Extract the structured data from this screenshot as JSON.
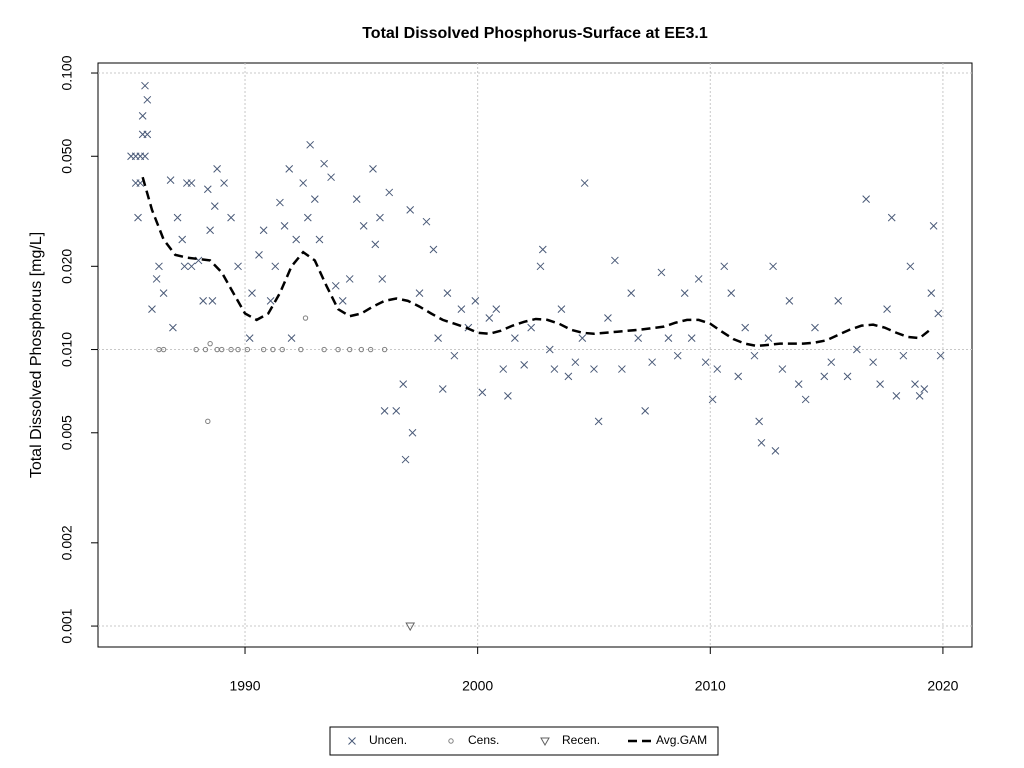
{
  "chart_data": {
    "type": "scatter",
    "title": "Total Dissolved Phosphorus-Surface at EE3.1",
    "ylabel": "Total Dissolved Phosphorus [mg/L]",
    "log_y": true,
    "grid": true,
    "xlim": [
      1983.68,
      2021.25
    ],
    "xticks": [
      1990,
      2000,
      2010,
      2020
    ],
    "ylim": [
      0.00084,
      0.1087
    ],
    "yticks": [
      0.001,
      0.002,
      0.005,
      {
        "value": 0.01,
        "label": "0.010"
      },
      {
        "value": 0.02,
        "label": "0.020"
      },
      {
        "value": 0.05,
        "label": "0.050"
      },
      {
        "value": 0.1,
        "label": "0.100"
      }
    ],
    "y_gridlines": [
      0.001,
      0.01,
      0.1
    ],
    "legend": "bottom",
    "series": [
      {
        "name": "Uncen.",
        "color": "#4a5a78",
        "marker": "x",
        "x": [
          1985.1,
          1985.3,
          1985.5,
          1985.7,
          1985.3,
          1985.5,
          1985.6,
          1985.7,
          1985.8,
          1985.6,
          1985.8,
          1985.4,
          1986.0,
          1986.2,
          1986.3,
          1986.5,
          1986.8,
          1986.9,
          1987.1,
          1987.3,
          1987.5,
          1987.7,
          1987.4,
          1987.7,
          1988.0,
          1988.2,
          1988.4,
          1988.5,
          1988.7,
          1988.8,
          1988.6,
          1989.1,
          1989.4,
          1989.7,
          1990.2,
          1990.3,
          1990.6,
          1990.8,
          1991.1,
          1991.3,
          1991.5,
          1991.7,
          1991.9,
          1992.0,
          1992.2,
          1992.5,
          1992.7,
          1992.8,
          1993.0,
          1993.2,
          1993.4,
          1993.7,
          1993.9,
          1994.2,
          1994.5,
          1994.8,
          1995.1,
          1995.5,
          1995.6,
          1995.8,
          1995.9,
          1996.0,
          1996.2,
          1996.5,
          1996.8,
          1996.9,
          1997.1,
          1997.2,
          1997.5,
          1997.8,
          1998.1,
          1998.3,
          1998.5,
          1998.7,
          1999.0,
          1999.3,
          1999.6,
          1999.9,
          2000.2,
          2000.5,
          2000.8,
          2001.1,
          2001.3,
          2001.6,
          2002.0,
          2002.3,
          2002.7,
          2002.8,
          2003.1,
          2003.3,
          2003.6,
          2003.9,
          2004.2,
          2004.5,
          2004.6,
          2005.0,
          2005.2,
          2005.6,
          2005.9,
          2006.2,
          2006.6,
          2006.9,
          2007.2,
          2007.5,
          2007.9,
          2008.2,
          2008.6,
          2008.9,
          2009.2,
          2009.5,
          2009.8,
          2010.1,
          2010.3,
          2010.6,
          2010.9,
          2011.2,
          2011.5,
          2011.9,
          2012.1,
          2012.2,
          2012.5,
          2012.7,
          2012.8,
          2013.1,
          2013.4,
          2013.8,
          2014.1,
          2014.5,
          2014.9,
          2015.2,
          2015.5,
          2015.9,
          2016.3,
          2016.7,
          2017.0,
          2017.3,
          2017.6,
          2017.8,
          2018.0,
          2018.3,
          2018.6,
          2018.8,
          2019.0,
          2019.2,
          2019.5,
          2019.6,
          2019.9,
          2019.8
        ],
        "values": [
          0.05,
          0.05,
          0.05,
          0.05,
          0.04,
          0.04,
          0.07,
          0.09,
          0.08,
          0.06,
          0.06,
          0.03,
          0.014,
          0.018,
          0.02,
          0.016,
          0.041,
          0.012,
          0.03,
          0.025,
          0.04,
          0.04,
          0.02,
          0.02,
          0.021,
          0.015,
          0.038,
          0.027,
          0.033,
          0.045,
          0.015,
          0.04,
          0.03,
          0.02,
          0.011,
          0.016,
          0.022,
          0.027,
          0.015,
          0.02,
          0.034,
          0.028,
          0.045,
          0.011,
          0.025,
          0.04,
          0.03,
          0.055,
          0.035,
          0.025,
          0.047,
          0.042,
          0.017,
          0.015,
          0.018,
          0.035,
          0.028,
          0.045,
          0.024,
          0.03,
          0.018,
          0.006,
          0.037,
          0.006,
          0.0075,
          0.004,
          0.032,
          0.005,
          0.016,
          0.029,
          0.023,
          0.011,
          0.0072,
          0.016,
          0.0095,
          0.014,
          0.012,
          0.015,
          0.007,
          0.013,
          0.014,
          0.0085,
          0.0068,
          0.011,
          0.0088,
          0.012,
          0.02,
          0.023,
          0.01,
          0.0085,
          0.014,
          0.008,
          0.009,
          0.011,
          0.04,
          0.0085,
          0.0055,
          0.013,
          0.021,
          0.0085,
          0.016,
          0.011,
          0.006,
          0.009,
          0.019,
          0.011,
          0.0095,
          0.016,
          0.011,
          0.018,
          0.009,
          0.0066,
          0.0085,
          0.02,
          0.016,
          0.008,
          0.012,
          0.0095,
          0.0055,
          0.0046,
          0.011,
          0.02,
          0.0043,
          0.0085,
          0.015,
          0.0075,
          0.0066,
          0.012,
          0.008,
          0.009,
          0.015,
          0.008,
          0.01,
          0.035,
          0.009,
          0.0075,
          0.014,
          0.03,
          0.0068,
          0.0095,
          0.02,
          0.0075,
          0.0068,
          0.0072,
          0.016,
          0.028,
          0.0095,
          0.0135
        ]
      },
      {
        "name": "Cens.",
        "color": "#808080",
        "marker": "circle",
        "x": [
          1986.3,
          1986.5,
          1987.9,
          1988.3,
          1988.5,
          1988.4,
          1988.8,
          1989.0,
          1989.4,
          1989.7,
          1990.1,
          1990.8,
          1991.2,
          1991.6,
          1992.4,
          1992.6,
          1993.4,
          1994.0,
          1994.5,
          1995.0,
          1995.4,
          1996.0
        ],
        "values": [
          0.01,
          0.01,
          0.01,
          0.01,
          0.0105,
          0.0055,
          0.01,
          0.01,
          0.01,
          0.01,
          0.01,
          0.01,
          0.01,
          0.01,
          0.01,
          0.013,
          0.01,
          0.01,
          0.01,
          0.01,
          0.01,
          0.01
        ]
      },
      {
        "name": "Recen.",
        "color": "#606060",
        "marker": "triangle",
        "x": [
          1997.1
        ],
        "values": [
          0.001
        ]
      },
      {
        "name": "Avg.GAM",
        "color": "#000000",
        "marker": "dashed-line",
        "x": [
          1985.6,
          1986.0,
          1986.5,
          1987.0,
          1987.5,
          1988.5,
          1989.0,
          1989.5,
          1990.0,
          1990.5,
          1991.0,
          1991.5,
          1992.0,
          1992.5,
          1993.0,
          1993.5,
          1994.0,
          1994.5,
          1995.0,
          1995.5,
          1996.0,
          1996.5,
          1997.0,
          1997.5,
          1998.0,
          1998.5,
          1999.0,
          1999.5,
          2000.0,
          2000.5,
          2001.0,
          2001.5,
          2002.0,
          2002.5,
          2003.0,
          2003.5,
          2004.0,
          2004.5,
          2005.0,
          2005.5,
          2006.0,
          2007.0,
          2008.0,
          2008.5,
          2009.0,
          2009.5,
          2010.0,
          2010.5,
          2011.0,
          2011.5,
          2012.0,
          2012.5,
          2013.0,
          2014.0,
          2014.5,
          2015.0,
          2015.5,
          2016.0,
          2016.5,
          2017.0,
          2017.5,
          2018.0,
          2018.5,
          2019.0,
          2019.4
        ],
        "values": [
          0.042,
          0.032,
          0.025,
          0.022,
          0.0215,
          0.021,
          0.019,
          0.016,
          0.0135,
          0.0128,
          0.0135,
          0.016,
          0.02,
          0.0225,
          0.021,
          0.017,
          0.014,
          0.0132,
          0.0135,
          0.0143,
          0.015,
          0.0153,
          0.015,
          0.0143,
          0.0135,
          0.0128,
          0.0124,
          0.012,
          0.0115,
          0.0114,
          0.0117,
          0.0122,
          0.0126,
          0.0129,
          0.0128,
          0.0124,
          0.0118,
          0.0115,
          0.0114,
          0.0115,
          0.0116,
          0.0118,
          0.0121,
          0.0125,
          0.0128,
          0.0128,
          0.0124,
          0.0116,
          0.0109,
          0.0105,
          0.0103,
          0.0104,
          0.0105,
          0.0105,
          0.0106,
          0.0108,
          0.0113,
          0.0118,
          0.0122,
          0.0123,
          0.012,
          0.0115,
          0.0111,
          0.011,
          0.0117
        ]
      }
    ]
  }
}
